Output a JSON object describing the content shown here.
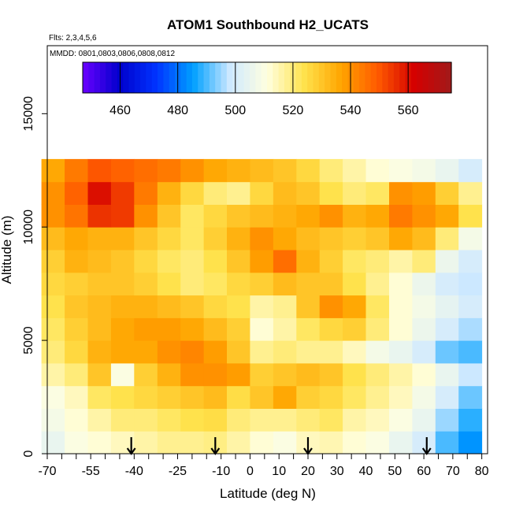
{
  "chart_data": {
    "type": "heatmap",
    "title": "ATOM1 Southbound H2_UCATS",
    "annotations": {
      "flights": "Flts: 2,3,4,5,6",
      "dates": "MMDD: 0801,0803,0806,0808,0812"
    },
    "xlabel": "Latitude (deg N)",
    "ylabel": "Altitude (m)",
    "xlim": [
      -70,
      82
    ],
    "ylim": [
      0,
      18000
    ],
    "x_tick_labels": [
      "-70",
      "-55",
      "-40",
      "-25",
      "-10",
      "0",
      "10",
      "20",
      "30",
      "40",
      "50",
      "60",
      "70",
      "80"
    ],
    "x_tick_values": [
      -70,
      -55,
      -40,
      -25,
      -10,
      0,
      10,
      20,
      30,
      40,
      50,
      60,
      70,
      80
    ],
    "y_tick_labels": [
      "0",
      "5000",
      "10000",
      "15000"
    ],
    "y_tick_values": [
      0,
      5000,
      10000,
      15000
    ],
    "colorbar": {
      "range": [
        447,
        575
      ],
      "tick_labels": [
        "460",
        "480",
        "500",
        "520",
        "540",
        "560"
      ],
      "tick_values": [
        460,
        480,
        500,
        520,
        540,
        560
      ],
      "palette": [
        "#6a00ff",
        "#0000cc",
        "#0033ff",
        "#00a0ff",
        "#cfe9ff",
        "#ffffe0",
        "#ffe34d",
        "#ffa500",
        "#ff5a00",
        "#d40000",
        "#a11a1a"
      ]
    },
    "arrow_latitudes": [
      -41,
      -12,
      20,
      61
    ],
    "lat_levels": [
      -68,
      -60,
      -52,
      -44,
      -36,
      -28,
      -20,
      -12,
      -4,
      4,
      12,
      20,
      28,
      36,
      44,
      52,
      60,
      68,
      76
    ],
    "alt_levels": [
      500,
      1500,
      2500,
      3500,
      4500,
      5500,
      6500,
      7500,
      8500,
      9500,
      10500,
      11500,
      12500
    ],
    "h2_ppb": [
      [
        505,
        510,
        512,
        514,
        516,
        518,
        518,
        519,
        516,
        512,
        510,
        514,
        515,
        512,
        510,
        505,
        500,
        490,
        484
      ],
      [
        508,
        512,
        516,
        520,
        520,
        522,
        524,
        525,
        520,
        518,
        518,
        520,
        522,
        516,
        514,
        510,
        505,
        495,
        488
      ],
      [
        510,
        514,
        522,
        524,
        526,
        528,
        530,
        532,
        525,
        530,
        536,
        528,
        526,
        522,
        518,
        514,
        508,
        500,
        492
      ],
      [
        516,
        520,
        530,
        510,
        528,
        534,
        540,
        540,
        538,
        528,
        530,
        532,
        530,
        524,
        520,
        516,
        512,
        505,
        498
      ],
      [
        520,
        526,
        534,
        536,
        536,
        540,
        542,
        538,
        530,
        518,
        520,
        518,
        518,
        514,
        508,
        505,
        500,
        492,
        490
      ],
      [
        522,
        528,
        532,
        536,
        538,
        538,
        536,
        532,
        528,
        512,
        516,
        522,
        526,
        528,
        520,
        512,
        506,
        500,
        496
      ],
      [
        524,
        530,
        532,
        534,
        534,
        532,
        530,
        526,
        524,
        516,
        518,
        530,
        540,
        536,
        522,
        512,
        508,
        504,
        500
      ],
      [
        526,
        528,
        530,
        530,
        528,
        524,
        520,
        522,
        526,
        528,
        532,
        530,
        530,
        524,
        518,
        512,
        506,
        500,
        498
      ],
      [
        528,
        534,
        532,
        530,
        526,
        522,
        520,
        524,
        530,
        538,
        546,
        534,
        528,
        522,
        520,
        516,
        520,
        506,
        500
      ],
      [
        532,
        536,
        534,
        534,
        530,
        526,
        522,
        528,
        534,
        540,
        536,
        532,
        530,
        528,
        530,
        536,
        532,
        520,
        508
      ],
      [
        540,
        545,
        555,
        554,
        540,
        530,
        522,
        526,
        530,
        532,
        534,
        536,
        540,
        534,
        536,
        544,
        540,
        536,
        524
      ],
      [
        540,
        548,
        560,
        554,
        544,
        534,
        526,
        520,
        518,
        526,
        532,
        530,
        524,
        520,
        522,
        540,
        538,
        528,
        518
      ],
      [
        536,
        544,
        550,
        548,
        546,
        544,
        540,
        536,
        534,
        532,
        530,
        526,
        520,
        516,
        512,
        510,
        508,
        505,
        500
      ]
    ]
  }
}
